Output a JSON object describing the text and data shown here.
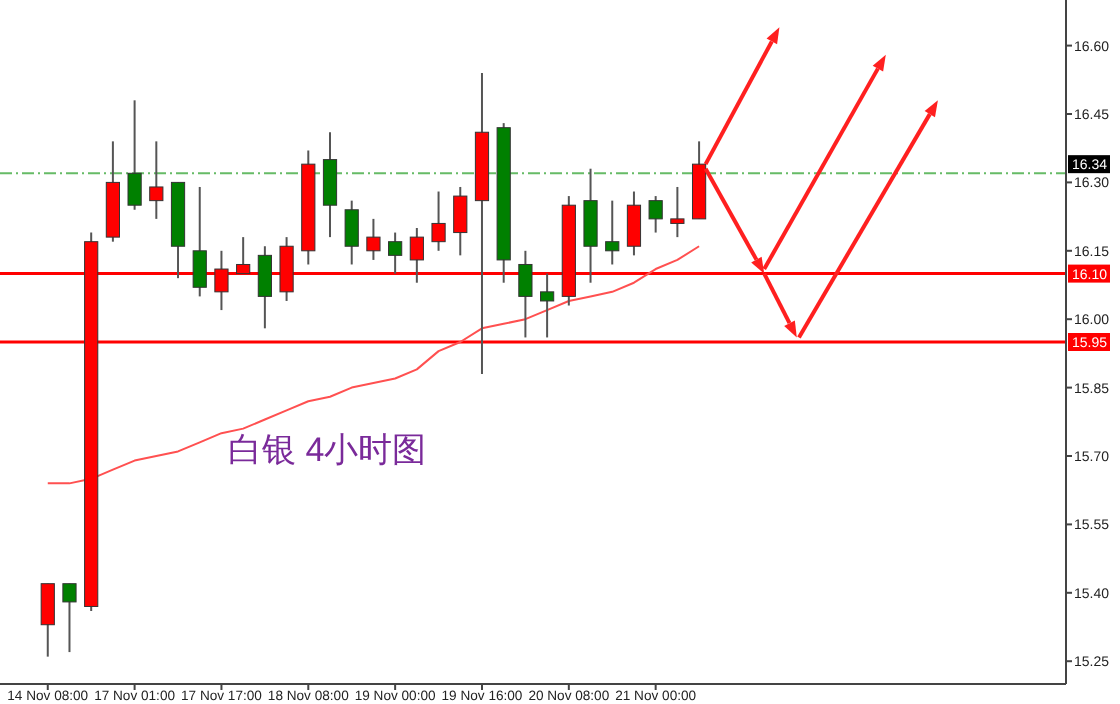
{
  "chart_data": {
    "type": "candlestick",
    "categories": [
      "14 Nov 08:00",
      null,
      null,
      null,
      "17 Nov 01:00",
      null,
      null,
      null,
      "17 Nov 17:00",
      null,
      null,
      null,
      "18 Nov 08:00",
      null,
      null,
      null,
      "19 Nov 00:00",
      null,
      null,
      null,
      "19 Nov 16:00",
      null,
      null,
      null,
      "20 Nov 08:00",
      null,
      null,
      null,
      "21 Nov 00:00",
      null,
      null,
      null,
      null,
      null,
      null,
      null,
      null,
      null,
      null,
      null,
      null,
      null,
      null,
      null,
      null,
      null,
      null
    ],
    "series": [
      {
        "ohlc": [
          [
            15.33,
            15.42,
            15.26,
            15.42
          ],
          [
            15.42,
            15.42,
            15.27,
            15.38
          ],
          [
            15.37,
            16.19,
            15.36,
            16.17
          ],
          [
            16.18,
            16.39,
            16.17,
            16.3
          ],
          [
            16.32,
            16.48,
            16.24,
            16.25
          ],
          [
            16.26,
            16.39,
            16.22,
            16.29
          ],
          [
            16.3,
            16.3,
            16.09,
            16.16
          ],
          [
            16.15,
            16.29,
            16.05,
            16.07
          ],
          [
            16.06,
            16.15,
            16.02,
            16.11
          ],
          [
            16.1,
            16.18,
            16.1,
            16.12
          ],
          [
            16.14,
            16.16,
            15.98,
            16.05
          ],
          [
            16.06,
            16.18,
            16.04,
            16.16
          ],
          [
            16.15,
            16.37,
            16.12,
            16.34
          ],
          [
            16.35,
            16.41,
            16.18,
            16.25
          ],
          [
            16.24,
            16.26,
            16.12,
            16.16
          ],
          [
            16.15,
            16.22,
            16.13,
            16.18
          ],
          [
            16.17,
            16.19,
            16.1,
            16.14
          ],
          [
            16.13,
            16.2,
            16.08,
            16.18
          ],
          [
            16.17,
            16.28,
            16.15,
            16.21
          ],
          [
            16.19,
            16.29,
            16.14,
            16.27
          ],
          [
            16.26,
            16.54,
            15.88,
            16.41
          ],
          [
            16.42,
            16.43,
            16.08,
            16.13
          ],
          [
            16.12,
            16.15,
            15.96,
            16.05
          ],
          [
            16.06,
            16.1,
            15.96,
            16.04
          ],
          [
            16.05,
            16.27,
            16.03,
            16.25
          ],
          [
            16.26,
            16.33,
            16.08,
            16.16
          ],
          [
            16.17,
            16.26,
            16.12,
            16.15
          ],
          [
            16.16,
            16.28,
            16.14,
            16.25
          ],
          [
            16.26,
            16.27,
            16.19,
            16.22
          ],
          [
            16.21,
            16.29,
            16.18,
            16.22
          ],
          [
            16.22,
            16.39,
            16.22,
            16.34
          ],
          null,
          null,
          null,
          null,
          null,
          null,
          null,
          null,
          null,
          null,
          null,
          null,
          null,
          null,
          null,
          null
        ],
        "colors": [
          "#ff0000",
          "#008000",
          "#ff0000",
          "#ff0000",
          "#008000",
          "#ff0000",
          "#008000",
          "#008000",
          "#ff0000",
          "#ff0000",
          "#008000",
          "#ff0000",
          "#ff0000",
          "#008000",
          "#008000",
          "#ff0000",
          "#008000",
          "#ff0000",
          "#ff0000",
          "#ff0000",
          "#ff0000",
          "#008000",
          "#008000",
          "#008000",
          "#ff0000",
          "#008000",
          "#008000",
          "#ff0000",
          "#008000",
          "#ff0000",
          "#ff0000",
          null,
          null,
          null,
          null,
          null,
          null,
          null,
          null,
          null,
          null,
          null,
          null,
          null,
          null,
          null,
          null
        ]
      },
      {
        "type": "line",
        "color": "#ff5050",
        "values": [
          15.64,
          15.64,
          15.65,
          15.67,
          15.69,
          15.7,
          15.71,
          15.73,
          15.75,
          15.76,
          15.78,
          15.8,
          15.82,
          15.83,
          15.85,
          15.86,
          15.87,
          15.89,
          15.93,
          15.95,
          15.98,
          15.99,
          16.0,
          16.02,
          16.04,
          16.05,
          16.06,
          16.08,
          16.11,
          16.13,
          16.16,
          null,
          null,
          null,
          null,
          null,
          null,
          null,
          null,
          null,
          null,
          null,
          null,
          null,
          null,
          null,
          null
        ]
      }
    ],
    "ylim": [
      15.2,
      16.7
    ],
    "yticks": [
      {
        "value": 16.6,
        "label": "16.60"
      },
      {
        "value": 16.45,
        "label": "16.45"
      },
      {
        "value": 16.3,
        "label": "16.30"
      },
      {
        "value": 16.15,
        "label": "16.15"
      },
      {
        "value": 16.0,
        "label": "16.00"
      },
      {
        "value": 15.85,
        "label": "15.85"
      },
      {
        "value": 15.7,
        "label": "15.70"
      },
      {
        "value": 15.55,
        "label": "15.55"
      },
      {
        "value": 15.4,
        "label": "15.40"
      },
      {
        "value": 15.25,
        "label": "15.25"
      }
    ],
    "ref_lines": [
      {
        "axis": "y",
        "value": 16.1,
        "label": "16.10",
        "color": "#ff0000",
        "line_style": "solid"
      },
      {
        "axis": "y",
        "value": 15.95,
        "label": "15.95",
        "color": "#ff0000",
        "line_style": "solid"
      },
      {
        "axis": "y",
        "value": 16.32,
        "color": "#66bb66",
        "line_style": "dashdot"
      }
    ],
    "annotations": [
      "16.34",
      "白银 4小时图"
    ]
  }
}
